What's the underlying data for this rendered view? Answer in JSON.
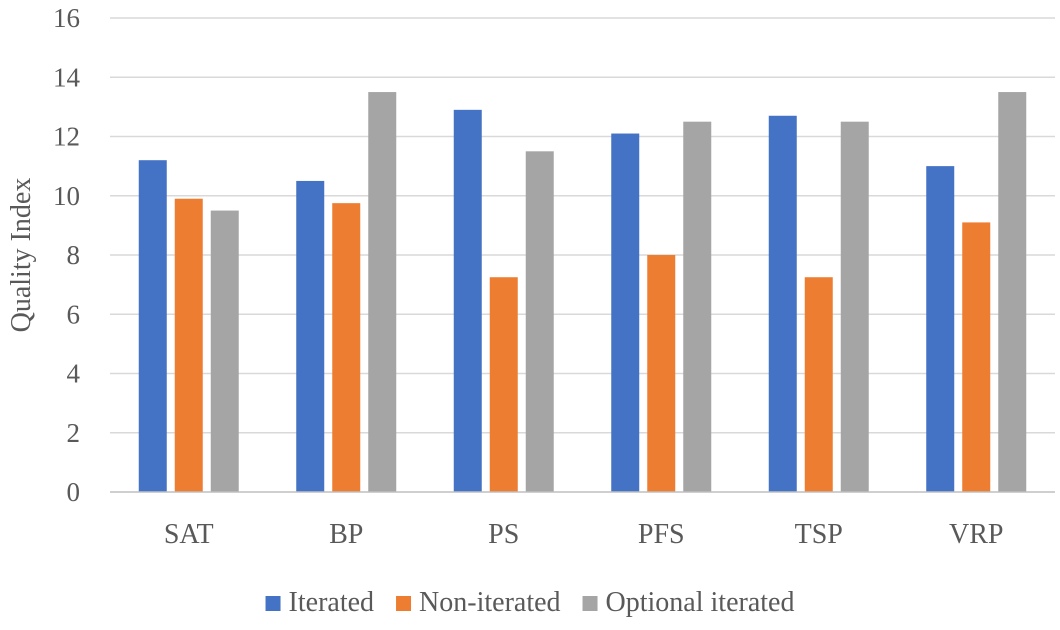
{
  "chart_data": {
    "type": "bar",
    "title": "",
    "xlabel": "",
    "ylabel": "Quality Index",
    "ylim": [
      0,
      16
    ],
    "yticks": [
      "0",
      "2",
      "4",
      "6",
      "8",
      "10",
      "12",
      "14",
      "16"
    ],
    "grid": true,
    "legend_position": "bottom",
    "categories": [
      "SAT",
      "BP",
      "PS",
      "PFS",
      "TSP",
      "VRP"
    ],
    "series": [
      {
        "name": "Iterated",
        "color": "#4472c4",
        "values": [
          11.2,
          10.5,
          12.9,
          12.1,
          12.7,
          11.0
        ]
      },
      {
        "name": "Non-iterated",
        "color": "#ed7d31",
        "values": [
          9.9,
          9.75,
          7.25,
          8.0,
          7.25,
          9.1
        ]
      },
      {
        "name": "Optional iterated",
        "color": "#a5a5a5",
        "values": [
          9.5,
          13.5,
          11.5,
          12.5,
          12.5,
          13.5
        ]
      }
    ]
  }
}
